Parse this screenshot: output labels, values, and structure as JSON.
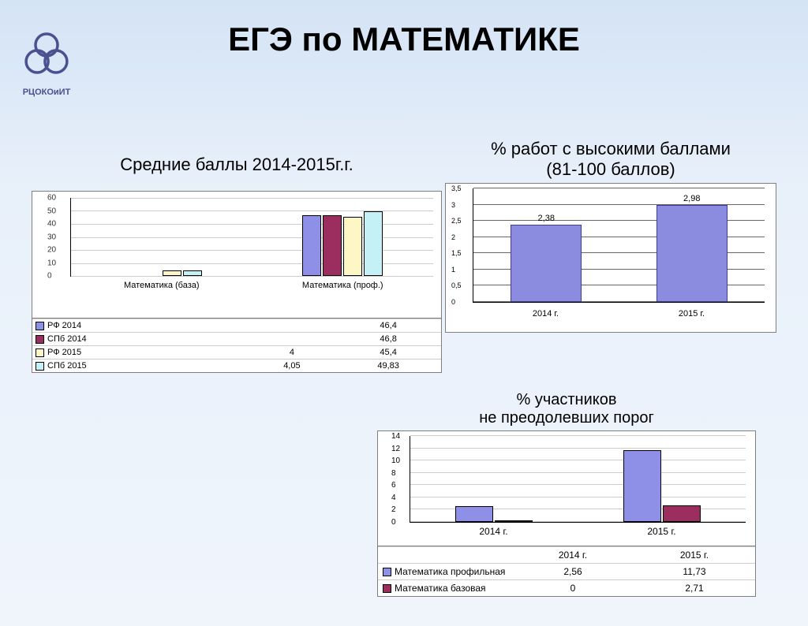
{
  "logo_text": "РЦОКОиИТ",
  "title": "ЕГЭ по МАТЕМАТИКЕ",
  "chart1": {
    "subtitle": "Средние баллы 2014-2015г.г.",
    "type": "grouped-bar",
    "ymax": 60,
    "ytick_step": 10,
    "ytick_fontsize": 10,
    "categories": [
      "Математика (база)",
      "Математика (проф.)"
    ],
    "series": [
      {
        "name": "РФ 2014",
        "color": "#8e90e8",
        "values": [
          null,
          46.4
        ]
      },
      {
        "name": "СПб 2014",
        "color": "#9c2d5f",
        "values": [
          null,
          46.8
        ]
      },
      {
        "name": "РФ 2015",
        "color": "#fdf7c6",
        "values": [
          4,
          45.4
        ]
      },
      {
        "name": "СПб 2015",
        "color": "#c3f1f6",
        "values": [
          4.05,
          49.83
        ]
      }
    ],
    "border_color": "#000000",
    "grid_color": "#cccccc",
    "background_color": "#ffffff"
  },
  "chart2": {
    "subtitle_line1": "% работ с высокими баллами",
    "subtitle_line2": "(81-100 баллов)",
    "type": "bar",
    "ymax": 3.5,
    "ytick_step": 0.5,
    "categories": [
      "2014 г.",
      "2015 г."
    ],
    "values": [
      2.38,
      2.98
    ],
    "bar_color": "#8e90e8",
    "bar_border": "#3c3c90",
    "value_fontsize": 11,
    "axis_fontsize": 10,
    "background_color": "#ffffff"
  },
  "chart3": {
    "subtitle_line1": "% участников",
    "subtitle_line2": "не преодолевших порог",
    "type": "grouped-bar",
    "ymax": 14,
    "ytick_step": 2,
    "categories": [
      "2014 г.",
      "2015 г."
    ],
    "series": [
      {
        "name": "Математика профильная",
        "color": "#8e90e8",
        "values": [
          2.56,
          11.73
        ]
      },
      {
        "name": "Математика базовая",
        "color": "#9c2d5f",
        "values": [
          0,
          2.71
        ]
      }
    ],
    "background_color": "#ffffff",
    "grid_color": "#cccccc"
  }
}
